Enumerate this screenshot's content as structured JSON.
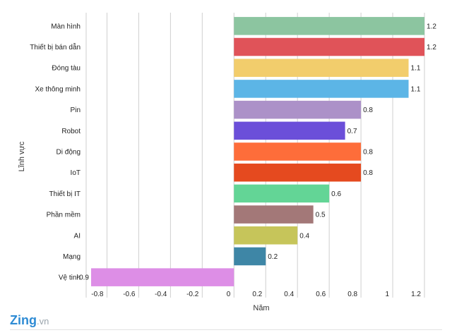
{
  "brand": {
    "name": "Zing",
    "suffix": ".vn"
  },
  "chart_data": {
    "type": "bar",
    "orientation": "horizontal",
    "title": "",
    "xlabel": "Năm",
    "ylabel": "Lĩnh vực",
    "xlim": [
      -0.9,
      1.2
    ],
    "xticks": [
      -0.8,
      -0.6,
      -0.4,
      -0.2,
      0,
      0.2,
      0.4,
      0.6,
      0.8,
      1,
      1.2
    ],
    "xtick_labels": [
      "-0.8",
      "-0.6",
      "-0.4",
      "-0.2",
      "0",
      "0.2",
      "0.4",
      "0.6",
      "0.8",
      "1",
      "1.2"
    ],
    "grid": true,
    "categories": [
      "Màn hình",
      "Thiết bị bán dẫn",
      "Đóng tàu",
      "Xe thông minh",
      "Pin",
      "Robot",
      "Di động",
      "IoT",
      "Thiết bị IT",
      "Phần mềm",
      "AI",
      "Mạng",
      "Vệ tinh"
    ],
    "values": [
      1.2,
      1.2,
      1.1,
      1.1,
      0.8,
      0.7,
      0.8,
      0.8,
      0.6,
      0.5,
      0.4,
      0.2,
      -0.9
    ],
    "value_labels": [
      "1.2",
      "1.2",
      "1.1",
      "1.1",
      "0.8",
      "0.7",
      "0.8",
      "0.8",
      "0.6",
      "0.5",
      "0.4",
      "0.2",
      "-0.9"
    ],
    "colors": [
      "#8cc5a0",
      "#e05359",
      "#f2cd6c",
      "#5cb5e6",
      "#ac91c8",
      "#6b4fd9",
      "#fe6d3a",
      "#e54a1f",
      "#63d596",
      "#a37878",
      "#c6c55a",
      "#3e86a6",
      "#dd8ee6"
    ]
  }
}
